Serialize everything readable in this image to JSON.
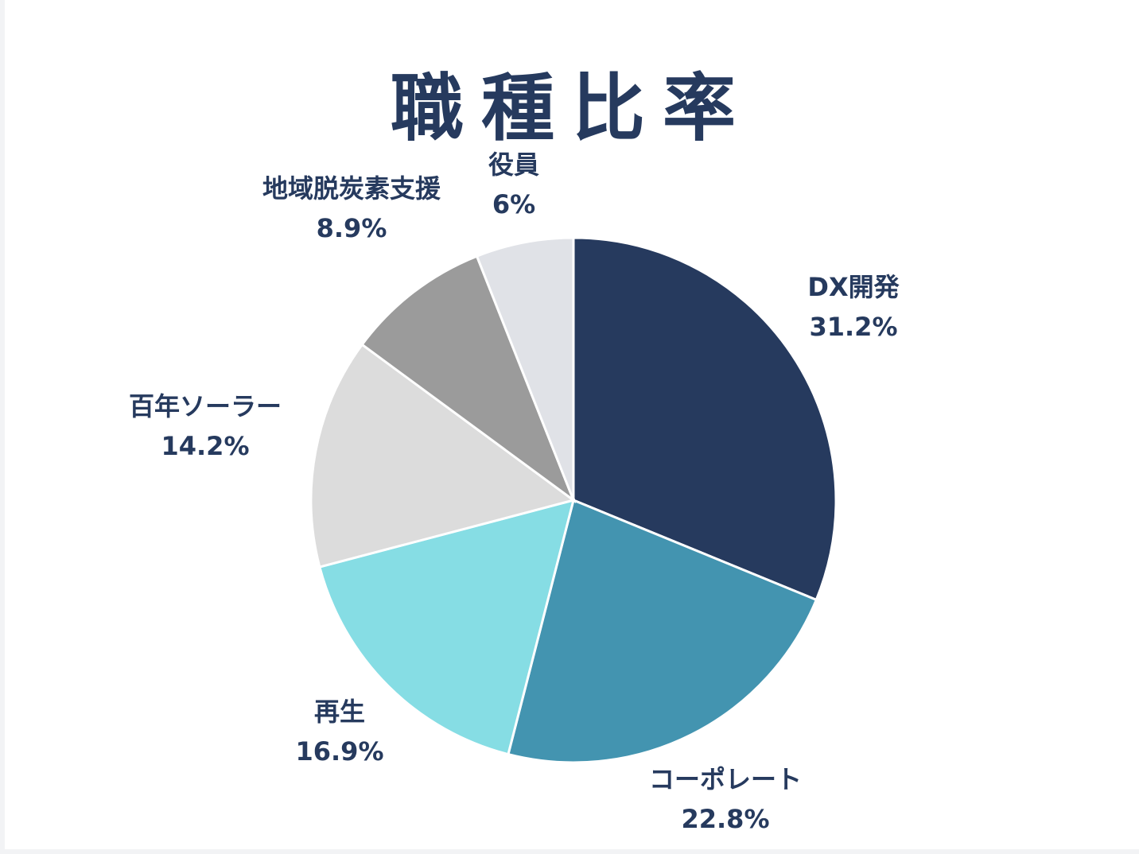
{
  "chart_data": {
    "type": "pie",
    "title": "職種比率",
    "slices": [
      {
        "label": "DX開発",
        "value": 31.2,
        "value_label": "31.2%",
        "color": "#263a5e"
      },
      {
        "label": "コーポレート",
        "value": 22.8,
        "value_label": "22.8%",
        "color": "#4394b0"
      },
      {
        "label": "再生",
        "value": 16.9,
        "value_label": "16.9%",
        "color": "#86dde4"
      },
      {
        "label": "百年ソーラー",
        "value": 14.2,
        "value_label": "14.2%",
        "color": "#dcdcdc"
      },
      {
        "label": "地域脱炭素支援",
        "value": 8.9,
        "value_label": "8.9%",
        "color": "#9b9b9b"
      },
      {
        "label": "役員",
        "value": 6,
        "value_label": "6%",
        "color": "#e0e2e7"
      }
    ],
    "start_angle": "12 o'clock",
    "direction": "clockwise",
    "legend": "none"
  },
  "colors": {
    "title": "#263a5e",
    "label_text": "#263a5e",
    "background": "#ffffff"
  }
}
